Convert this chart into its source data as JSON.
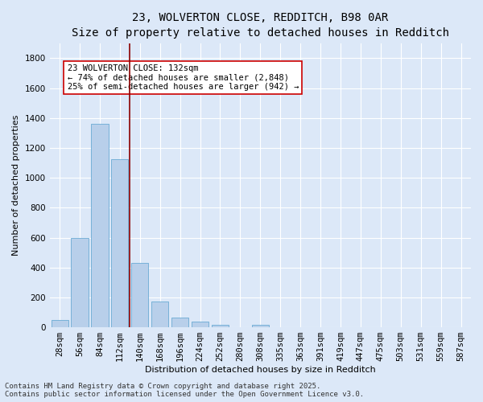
{
  "title_line1": "23, WOLVERTON CLOSE, REDDITCH, B98 0AR",
  "title_line2": "Size of property relative to detached houses in Redditch",
  "xlabel": "Distribution of detached houses by size in Redditch",
  "ylabel": "Number of detached properties",
  "categories": [
    "28sqm",
    "56sqm",
    "84sqm",
    "112sqm",
    "140sqm",
    "168sqm",
    "196sqm",
    "224sqm",
    "252sqm",
    "280sqm",
    "308sqm",
    "335sqm",
    "363sqm",
    "391sqm",
    "419sqm",
    "447sqm",
    "475sqm",
    "503sqm",
    "531sqm",
    "559sqm",
    "587sqm"
  ],
  "values": [
    50,
    600,
    1360,
    1125,
    430,
    170,
    65,
    40,
    15,
    0,
    15,
    0,
    0,
    0,
    0,
    0,
    0,
    0,
    0,
    0,
    0
  ],
  "bar_color": "#b8cfea",
  "bar_edge_color": "#6aaad4",
  "background_color": "#dce8f8",
  "grid_color": "#ffffff",
  "vline_x": 3.5,
  "vline_color": "#8b0000",
  "annotation_text": "23 WOLVERTON CLOSE: 132sqm\n← 74% of detached houses are smaller (2,848)\n25% of semi-detached houses are larger (942) →",
  "annotation_box_color": "white",
  "annotation_box_edge": "#cc0000",
  "ylim": [
    0,
    1900
  ],
  "yticks": [
    0,
    200,
    400,
    600,
    800,
    1000,
    1200,
    1400,
    1600,
    1800
  ],
  "footer_line1": "Contains HM Land Registry data © Crown copyright and database right 2025.",
  "footer_line2": "Contains public sector information licensed under the Open Government Licence v3.0.",
  "title_fontsize": 10,
  "subtitle_fontsize": 9,
  "axis_label_fontsize": 8,
  "tick_fontsize": 7.5,
  "annotation_fontsize": 7.5,
  "footer_fontsize": 6.5
}
